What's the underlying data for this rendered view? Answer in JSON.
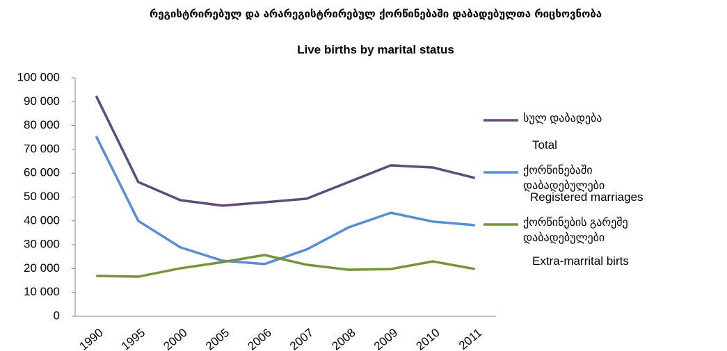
{
  "chart_data": {
    "type": "line",
    "title": "რეგისტრირებულ და არარეგისტრირებულ ქორწინებაში დაბადებულთა რიცხოვნობა",
    "subtitle": "Live births by marital status",
    "categories": [
      "1990",
      "1995",
      "2000",
      "2005",
      "2006",
      "2007",
      "2008",
      "2009",
      "2010",
      "2011"
    ],
    "series": [
      {
        "name": "სულ დაბადება",
        "name_en": "Total",
        "color": "#604a7b",
        "values": [
          92400,
          56300,
          48700,
          46400,
          47800,
          49300,
          56300,
          63300,
          62400,
          58000
        ]
      },
      {
        "name": "ქორწინებაში დაბადებულები",
        "name_en": "Registered marriages",
        "color": "#558ed5",
        "values": [
          75500,
          40000,
          28900,
          23300,
          21900,
          28000,
          37300,
          43400,
          39700,
          38200
        ]
      },
      {
        "name": "ქორწინების გარეშე დაბადებულები",
        "name_en": "Extra-marrital birts",
        "color": "#77933c",
        "values": [
          16900,
          16600,
          20100,
          22700,
          25700,
          21600,
          19500,
          19800,
          23000,
          19800
        ]
      }
    ],
    "ylim": [
      0,
      100000
    ],
    "yticks": [
      0,
      {
        "value": 10000,
        "label": "10 000"
      },
      {
        "value": 20000,
        "label": "20 000"
      },
      {
        "value": 30000,
        "label": "30 000"
      },
      {
        "value": 40000,
        "label": "40 000"
      },
      {
        "value": 50000,
        "label": "50 000"
      },
      {
        "value": 60000,
        "label": "60 000"
      },
      {
        "value": 70000,
        "label": "70 000"
      },
      {
        "value": 80000,
        "label": "80 000"
      },
      {
        "value": 90000,
        "label": "90 000"
      },
      {
        "value": 100000,
        "label": "100 000"
      }
    ],
    "legend": "right"
  }
}
